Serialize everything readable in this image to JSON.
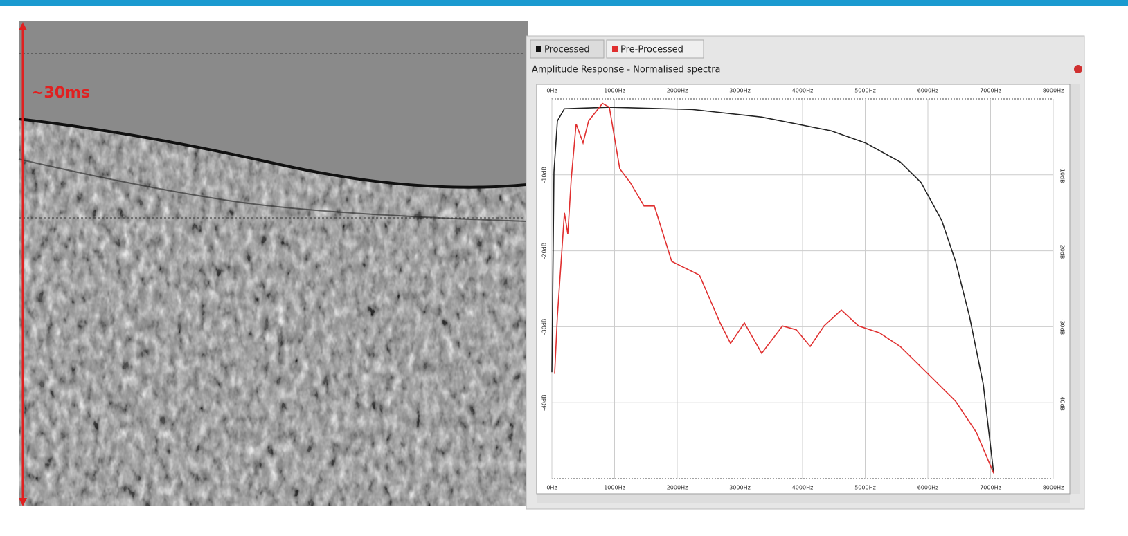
{
  "annotation": "~30ms",
  "chart_data": {
    "type": "line",
    "title": "Amplitude Response - Normalised spectra",
    "series": [
      {
        "name": "Processed",
        "color": "#222222",
        "x": [
          0,
          33,
          88,
          200,
          917,
          2243,
          3348,
          4453,
          5006,
          5558,
          5890,
          6221,
          6442,
          6663,
          6884,
          7050
        ],
        "values": [
          -36,
          -9.6,
          -2.9,
          -1.3,
          -1.1,
          -1.4,
          -2.4,
          -4.2,
          -5.8,
          -8.3,
          -11,
          -16,
          -21.4,
          -28.6,
          -37.6,
          -49.3
        ]
      },
      {
        "name": "Pre-Processed",
        "color": "#e03030",
        "x": [
          44,
          88,
          200,
          254,
          309,
          387,
          497,
          586,
          807,
          917,
          1083,
          1249,
          1470,
          1635,
          1912,
          2133,
          2354,
          2685,
          2851,
          3072,
          3348,
          3680,
          3901,
          4122,
          4343,
          4619,
          4895,
          5227,
          5558,
          6000,
          6442,
          6773,
          7050
        ],
        "values": [
          -36.2,
          -28.6,
          -15,
          -17.8,
          -10.5,
          -3.3,
          -5.8,
          -2.9,
          -0.6,
          -1.1,
          -9.2,
          -11,
          -14.1,
          -14.1,
          -21.4,
          -22.3,
          -23.2,
          -29.5,
          -32.2,
          -29.5,
          -33.5,
          -29.9,
          -30.4,
          -32.6,
          -29.9,
          -27.8,
          -29.9,
          -30.8,
          -32.6,
          -36.2,
          -39.8,
          -43.9,
          -49.3
        ]
      }
    ],
    "xlim": [
      0,
      8000
    ],
    "xticks": [
      {
        "value": 0,
        "label": "0Hz"
      },
      {
        "value": 1000,
        "label": "1000Hz"
      },
      {
        "value": 2000,
        "label": "2000Hz"
      },
      {
        "value": 3000,
        "label": "3000Hz"
      },
      {
        "value": 4000,
        "label": "4000Hz"
      },
      {
        "value": 5000,
        "label": "5000Hz"
      },
      {
        "value": 6000,
        "label": "6000Hz"
      },
      {
        "value": 7000,
        "label": "7000Hz"
      },
      {
        "value": 8000,
        "label": "8000Hz"
      }
    ],
    "ylim": [
      -50,
      0
    ],
    "yticks": [
      {
        "value": -10,
        "label": "-10dB"
      },
      {
        "value": -20,
        "label": "-20dB"
      },
      {
        "value": -30,
        "label": "-30dB"
      },
      {
        "value": -40,
        "label": "-40dB"
      }
    ],
    "grid": true
  }
}
